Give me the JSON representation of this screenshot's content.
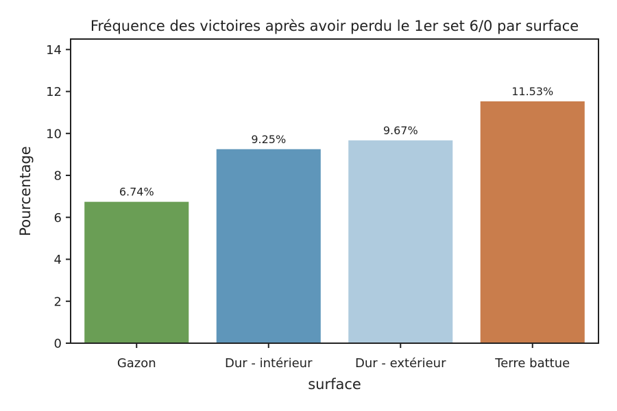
{
  "chart_data": {
    "type": "bar",
    "title": "Fréquence des victoires après avoir perdu le 1er set 6/0 par surface",
    "xlabel": "surface",
    "ylabel": "Pourcentage",
    "categories": [
      "Gazon",
      "Dur - intérieur",
      "Dur - extérieur",
      "Terre battue"
    ],
    "values": [
      6.74,
      9.25,
      9.67,
      11.53
    ],
    "data_labels": [
      "6.74%",
      "9.25%",
      "9.67%",
      "11.53%"
    ],
    "colors": [
      "#6a9e55",
      "#5f96ba",
      "#afcbde",
      "#c97d4c"
    ],
    "ylim": [
      0,
      14.5
    ],
    "yticks": [
      0,
      2,
      4,
      6,
      8,
      10,
      12,
      14
    ],
    "ytick_labels": [
      "0",
      "2",
      "4",
      "6",
      "8",
      "10",
      "12",
      "14"
    ],
    "grid": false,
    "legend": "none"
  }
}
